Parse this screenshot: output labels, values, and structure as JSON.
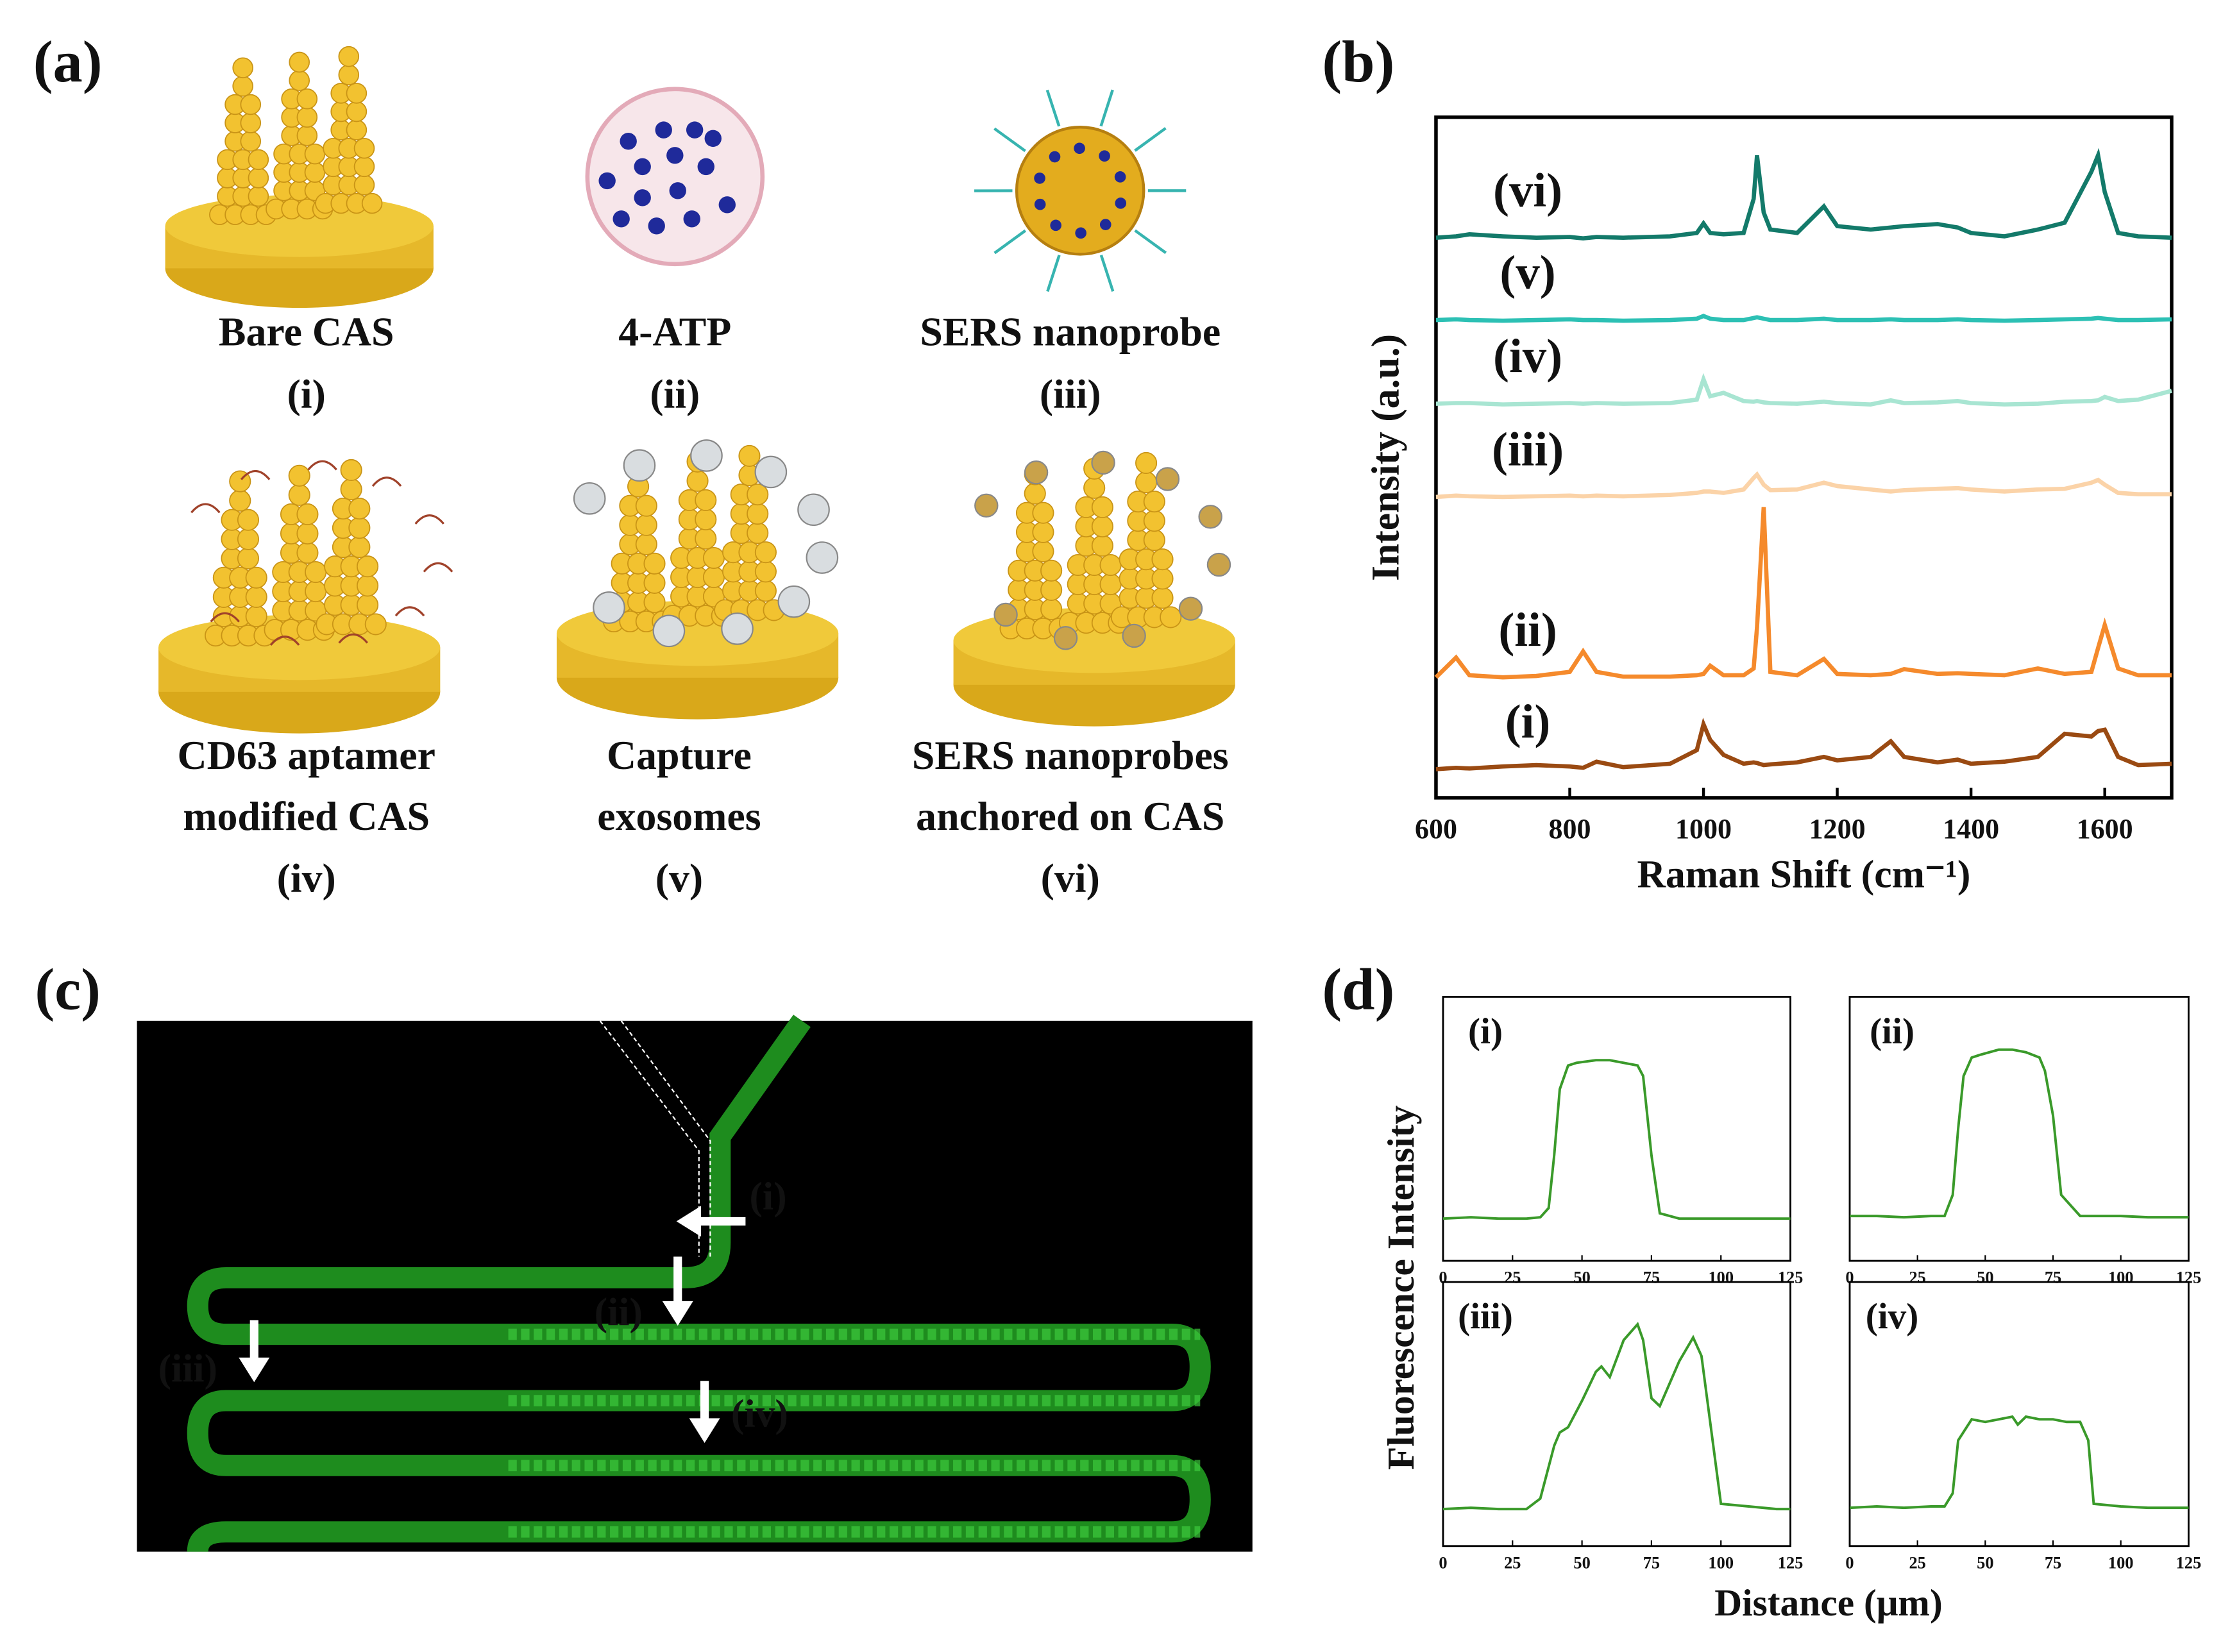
{
  "panels": [
    "(a)",
    "(b)",
    "(c)",
    "(d)"
  ],
  "panel_a": {
    "items": [
      {
        "lines": [
          "Bare CAS"
        ],
        "label": "(i)"
      },
      {
        "lines": [
          "4-ATP"
        ],
        "label": "(ii)"
      },
      {
        "lines": [
          "SERS nanoprobe"
        ],
        "label": "(iii)"
      },
      {
        "lines": [
          "CD63 aptamer",
          "modified CAS"
        ],
        "label": "(iv)"
      },
      {
        "lines": [
          "Capture",
          "exosomes"
        ],
        "label": "(v)"
      },
      {
        "lines": [
          "SERS nanoprobes",
          "anchored on CAS"
        ],
        "label": "(vi)"
      }
    ]
  },
  "panel_c": {
    "labels": [
      "(i)",
      "(ii)",
      "(iii)",
      "(iv)"
    ]
  },
  "panel_d": {
    "xlabel": "Distance (μm)",
    "ylabel": "Fluorescence Intensity"
  },
  "chart_data": [
    {
      "type": "line",
      "xlabel": "Raman Shift (cm⁻¹)",
      "ylabel": "Intensity (a.u.)",
      "xlim": [
        600,
        1700
      ],
      "xticks": [
        600,
        800,
        1000,
        1200,
        1400,
        1600
      ],
      "ylim": [
        0,
        100
      ],
      "x": [
        600,
        630,
        650,
        700,
        750,
        800,
        820,
        840,
        880,
        950,
        990,
        1000,
        1010,
        1030,
        1060,
        1075,
        1080,
        1090,
        1100,
        1140,
        1180,
        1200,
        1250,
        1280,
        1300,
        1350,
        1380,
        1400,
        1450,
        1500,
        1540,
        1580,
        1590,
        1600,
        1620,
        1650,
        1700
      ],
      "series": [
        {
          "name": "(vi)",
          "color": "#137a6a",
          "values": [
            82.3,
            82.5,
            82.8,
            82.5,
            82.3,
            82.4,
            82.2,
            82.4,
            82.3,
            82.5,
            83,
            84.4,
            83,
            82.8,
            83,
            88,
            94.4,
            86,
            83.5,
            83,
            86.9,
            84,
            83.5,
            83.8,
            84,
            84.3,
            83.8,
            83,
            82.5,
            83.5,
            84.5,
            92,
            94.4,
            89,
            83,
            82.5,
            82.3
          ]
        },
        {
          "name": "(v)",
          "color": "#2cc0b4",
          "values": [
            70.2,
            70.3,
            70.2,
            70.1,
            70.2,
            70.3,
            70.2,
            70.2,
            70.1,
            70.2,
            70.4,
            70.8,
            70.4,
            70.2,
            70.2,
            70.5,
            70.6,
            70.4,
            70.2,
            70.2,
            70.4,
            70.2,
            70.2,
            70.3,
            70.2,
            70.2,
            70.3,
            70.2,
            70.1,
            70.2,
            70.3,
            70.4,
            70.5,
            70.4,
            70.2,
            70.2,
            70.3
          ]
        },
        {
          "name": "(iv)",
          "color": "#a8e5d2",
          "values": [
            57.9,
            58,
            58,
            57.8,
            57.9,
            58,
            57.9,
            58,
            57.9,
            58,
            58.5,
            61.5,
            59,
            59.5,
            58.3,
            58.2,
            58.3,
            58.1,
            58,
            57.9,
            58.2,
            58,
            57.8,
            58.4,
            58,
            58.1,
            58.3,
            58,
            57.8,
            57.9,
            58.2,
            58.3,
            58.4,
            58.9,
            58.3,
            58.5,
            59.8
          ]
        },
        {
          "name": "(iii)",
          "color": "#fbd3a8",
          "values": [
            44.2,
            44.4,
            44.3,
            44.2,
            44.3,
            44.4,
            44.3,
            44.4,
            44.3,
            44.5,
            44.8,
            45,
            45,
            44.8,
            45.3,
            47,
            47.5,
            46,
            45.2,
            45.3,
            46.3,
            45.8,
            45.3,
            45,
            45.2,
            45.4,
            45.5,
            45.3,
            45,
            45.3,
            45.4,
            46.3,
            46.7,
            46,
            44.8,
            44.6,
            44.6
          ]
        },
        {
          "name": "(ii)",
          "color": "#f58a2c",
          "values": [
            17.7,
            20.6,
            18,
            17.7,
            17.9,
            18.5,
            21.5,
            18.5,
            17.8,
            17.8,
            18,
            18.2,
            19.4,
            18,
            18,
            19,
            25,
            42.7,
            18.5,
            18,
            20.4,
            18.2,
            18,
            18.2,
            18.9,
            18.2,
            18.3,
            18.2,
            18,
            19,
            18.2,
            18.5,
            22,
            25.4,
            19,
            18,
            18
          ]
        },
        {
          "name": "(i)",
          "color": "#9a4a12",
          "values": [
            4.2,
            4.4,
            4.3,
            4.6,
            4.8,
            4.6,
            4.4,
            5.3,
            4.5,
            5,
            7,
            10.8,
            8.5,
            6.3,
            5,
            5.2,
            5.1,
            4.8,
            4.9,
            5.2,
            6,
            5.5,
            6,
            8.3,
            6,
            5.2,
            5.6,
            5,
            5.3,
            6,
            9.4,
            9,
            9.8,
            10,
            6,
            4.8,
            5
          ]
        }
      ]
    },
    {
      "type": "line",
      "title": "(i)",
      "xlim": [
        0,
        125
      ],
      "xticks": [
        0,
        25,
        50,
        75,
        100,
        125
      ],
      "ylim": [
        0,
        100
      ],
      "x": [
        0,
        10,
        20,
        30,
        35,
        38,
        40,
        42,
        45,
        48,
        55,
        60,
        65,
        70,
        72,
        75,
        78,
        85,
        100,
        110,
        125
      ],
      "series": [
        {
          "color": "#3a9a2a",
          "values": [
            16,
            16.5,
            16,
            16,
            16.5,
            20,
            40,
            65,
            74,
            75,
            76,
            76,
            75,
            74,
            70,
            40,
            18,
            16,
            16,
            16,
            16
          ]
        }
      ]
    },
    {
      "type": "line",
      "title": "(ii)",
      "xlim": [
        0,
        125
      ],
      "xticks": [
        0,
        25,
        50,
        75,
        100,
        125
      ],
      "ylim": [
        0,
        100
      ],
      "x": [
        0,
        10,
        20,
        30,
        35,
        38,
        40,
        42,
        45,
        48,
        55,
        60,
        65,
        70,
        72,
        75,
        78,
        85,
        100,
        110,
        125
      ],
      "series": [
        {
          "color": "#3a9a2a",
          "values": [
            17,
            17,
            16.5,
            17,
            17,
            25,
            50,
            70,
            77,
            78,
            80,
            80,
            79,
            77,
            72,
            55,
            25,
            17,
            17,
            16.5,
            16.5
          ]
        }
      ]
    },
    {
      "type": "line",
      "title": "(iii)",
      "xlim": [
        0,
        125
      ],
      "xticks": [
        0,
        25,
        50,
        75,
        100,
        125
      ],
      "ylim": [
        0,
        100
      ],
      "x": [
        0,
        10,
        20,
        30,
        35,
        40,
        42,
        45,
        50,
        55,
        57,
        60,
        65,
        70,
        72,
        75,
        78,
        85,
        90,
        93,
        97,
        100,
        110,
        120,
        125
      ],
      "series": [
        {
          "color": "#3a9a2a",
          "values": [
            14,
            14.5,
            14,
            14,
            18,
            38,
            43,
            45,
            55,
            66,
            68,
            64,
            78,
            84,
            78,
            56,
            53,
            70,
            79,
            72,
            40,
            16,
            15,
            14,
            14
          ]
        }
      ]
    },
    {
      "type": "line",
      "title": "(iv)",
      "xlim": [
        0,
        125
      ],
      "xticks": [
        0,
        25,
        50,
        75,
        100,
        125
      ],
      "ylim": [
        0,
        100
      ],
      "x": [
        0,
        10,
        20,
        30,
        35,
        38,
        40,
        45,
        50,
        55,
        60,
        62,
        65,
        70,
        75,
        80,
        85,
        88,
        90,
        100,
        110,
        125
      ],
      "series": [
        {
          "color": "#3a9a2a",
          "values": [
            14.5,
            15,
            14.5,
            15,
            15,
            20,
            40,
            48,
            47,
            48,
            49,
            46,
            49,
            48,
            48,
            47,
            47,
            40,
            16,
            15,
            14.5,
            14.5
          ]
        }
      ]
    }
  ]
}
